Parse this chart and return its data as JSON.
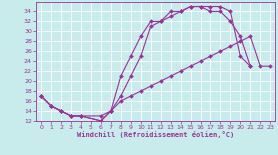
{
  "xlabel": "Windchill (Refroidissement éolien,°C)",
  "background_color": "#c8ecec",
  "line_color": "#993399",
  "grid_color": "#ffffff",
  "xlim": [
    -0.5,
    23.5
  ],
  "ylim": [
    12,
    36
  ],
  "yticks": [
    12,
    14,
    16,
    18,
    20,
    22,
    24,
    26,
    28,
    30,
    32,
    34
  ],
  "xticks": [
    0,
    1,
    2,
    3,
    4,
    5,
    6,
    7,
    8,
    9,
    10,
    11,
    12,
    13,
    14,
    15,
    16,
    17,
    18,
    19,
    20,
    21,
    22,
    23
  ],
  "line1_x": [
    0,
    1,
    2,
    3,
    4,
    6,
    7,
    8,
    9,
    10,
    11,
    12,
    13,
    14,
    15,
    16,
    17,
    18,
    19,
    20,
    21
  ],
  "line1_y": [
    17,
    15,
    14,
    13,
    13,
    12,
    14,
    17,
    21,
    25,
    31,
    32,
    33,
    34,
    35,
    35,
    35,
    35,
    34,
    25,
    23
  ],
  "line2_x": [
    0,
    1,
    2,
    3,
    4,
    6,
    7,
    8,
    9,
    10,
    11,
    12,
    13,
    14,
    15,
    16,
    17,
    18,
    19,
    20,
    21
  ],
  "line2_y": [
    17,
    15,
    14,
    13,
    13,
    12,
    14,
    21,
    25,
    29,
    32,
    32,
    34,
    34,
    35,
    35,
    34,
    34,
    32,
    29,
    23
  ],
  "line3_x": [
    0,
    1,
    2,
    3,
    4,
    6,
    7,
    8,
    9,
    10,
    11,
    12,
    13,
    14,
    15,
    16,
    17,
    18,
    19,
    20,
    21,
    22,
    23
  ],
  "line3_y": [
    17,
    15,
    14,
    13,
    13,
    13,
    14,
    16,
    17,
    18,
    19,
    20,
    21,
    22,
    23,
    24,
    25,
    26,
    27,
    28,
    29,
    23,
    23
  ]
}
